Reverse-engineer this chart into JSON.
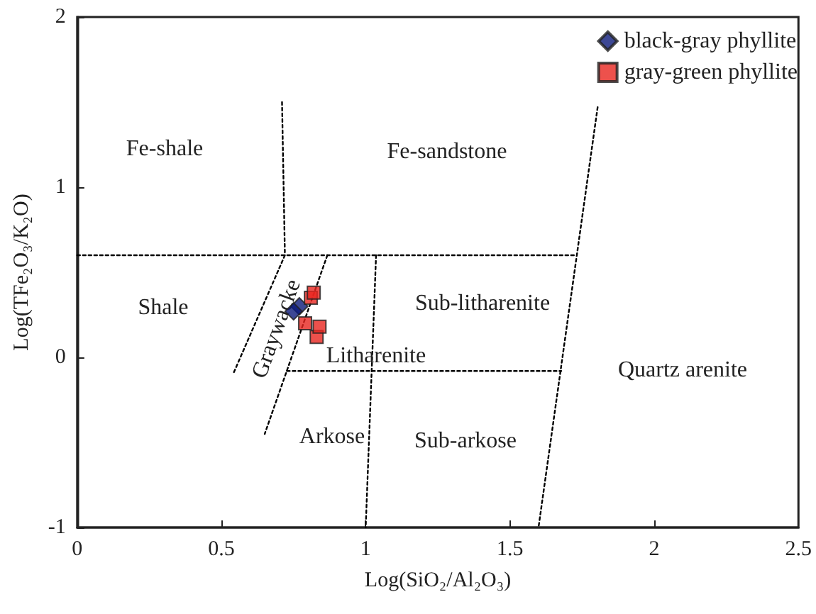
{
  "chart_data": {
    "type": "scatter",
    "xlabel": "Log(SiO₂/Al₂O₃)",
    "ylabel": "Log(TFe₂O₃/K₂O)",
    "xlim": [
      0,
      2.5
    ],
    "xticks": [
      0,
      0.5,
      1,
      1.5,
      2,
      2.5
    ],
    "ylim": [
      -1,
      2
    ],
    "yticks": [
      -1,
      0,
      1,
      2
    ],
    "grid": false,
    "legend": "top right",
    "series": [
      {
        "name": "black-gray phyllite",
        "color": "#0d1a7a",
        "marker": "diamond",
        "x": [
          0.75,
          0.77
        ],
        "values": [
          0.27,
          0.3
        ]
      },
      {
        "name": "gray-green phyllite",
        "color": "#e8251f",
        "marker": "square",
        "x": [
          0.82,
          0.81,
          0.79,
          0.84,
          0.83
        ],
        "values": [
          0.38,
          0.35,
          0.2,
          0.18,
          0.12
        ]
      },
      {
        "type": "line",
        "color": "#000000",
        "marker": "none",
        "line_style": "dotted",
        "x": [
          0,
          1.73
        ],
        "values": [
          0.6,
          0.6
        ]
      },
      {
        "type": "line",
        "color": "#000000",
        "marker": "none",
        "line_style": "dotted",
        "x": [
          0.71,
          0.72,
          0.54
        ],
        "values": [
          1.5,
          0.6,
          -0.1
        ]
      },
      {
        "type": "line",
        "color": "#000000",
        "marker": "none",
        "line_style": "dotted",
        "x": [
          0.867,
          0.65
        ],
        "values": [
          0.6,
          -0.45
        ]
      },
      {
        "type": "line",
        "color": "#000000",
        "marker": "none",
        "line_style": "dotted",
        "x": [
          0.727,
          1.678
        ],
        "values": [
          -0.08,
          -0.08
        ]
      },
      {
        "type": "line",
        "color": "#000000",
        "marker": "none",
        "line_style": "dotted",
        "x": [
          1.036,
          1.0
        ],
        "values": [
          0.6,
          -1
        ]
      },
      {
        "type": "line",
        "color": "#000000",
        "marker": "none",
        "line_style": "dotted",
        "x": [
          1.804,
          1.599
        ],
        "values": [
          1.47,
          -1
        ]
      }
    ],
    "annotations": [
      "Fe-shale",
      "Fe-sandstone",
      "Shale",
      "Graywacke",
      "Sub-litharenite",
      "Litharenite",
      "Quartz arenite",
      "Arkose",
      "Sub-arkose"
    ]
  }
}
